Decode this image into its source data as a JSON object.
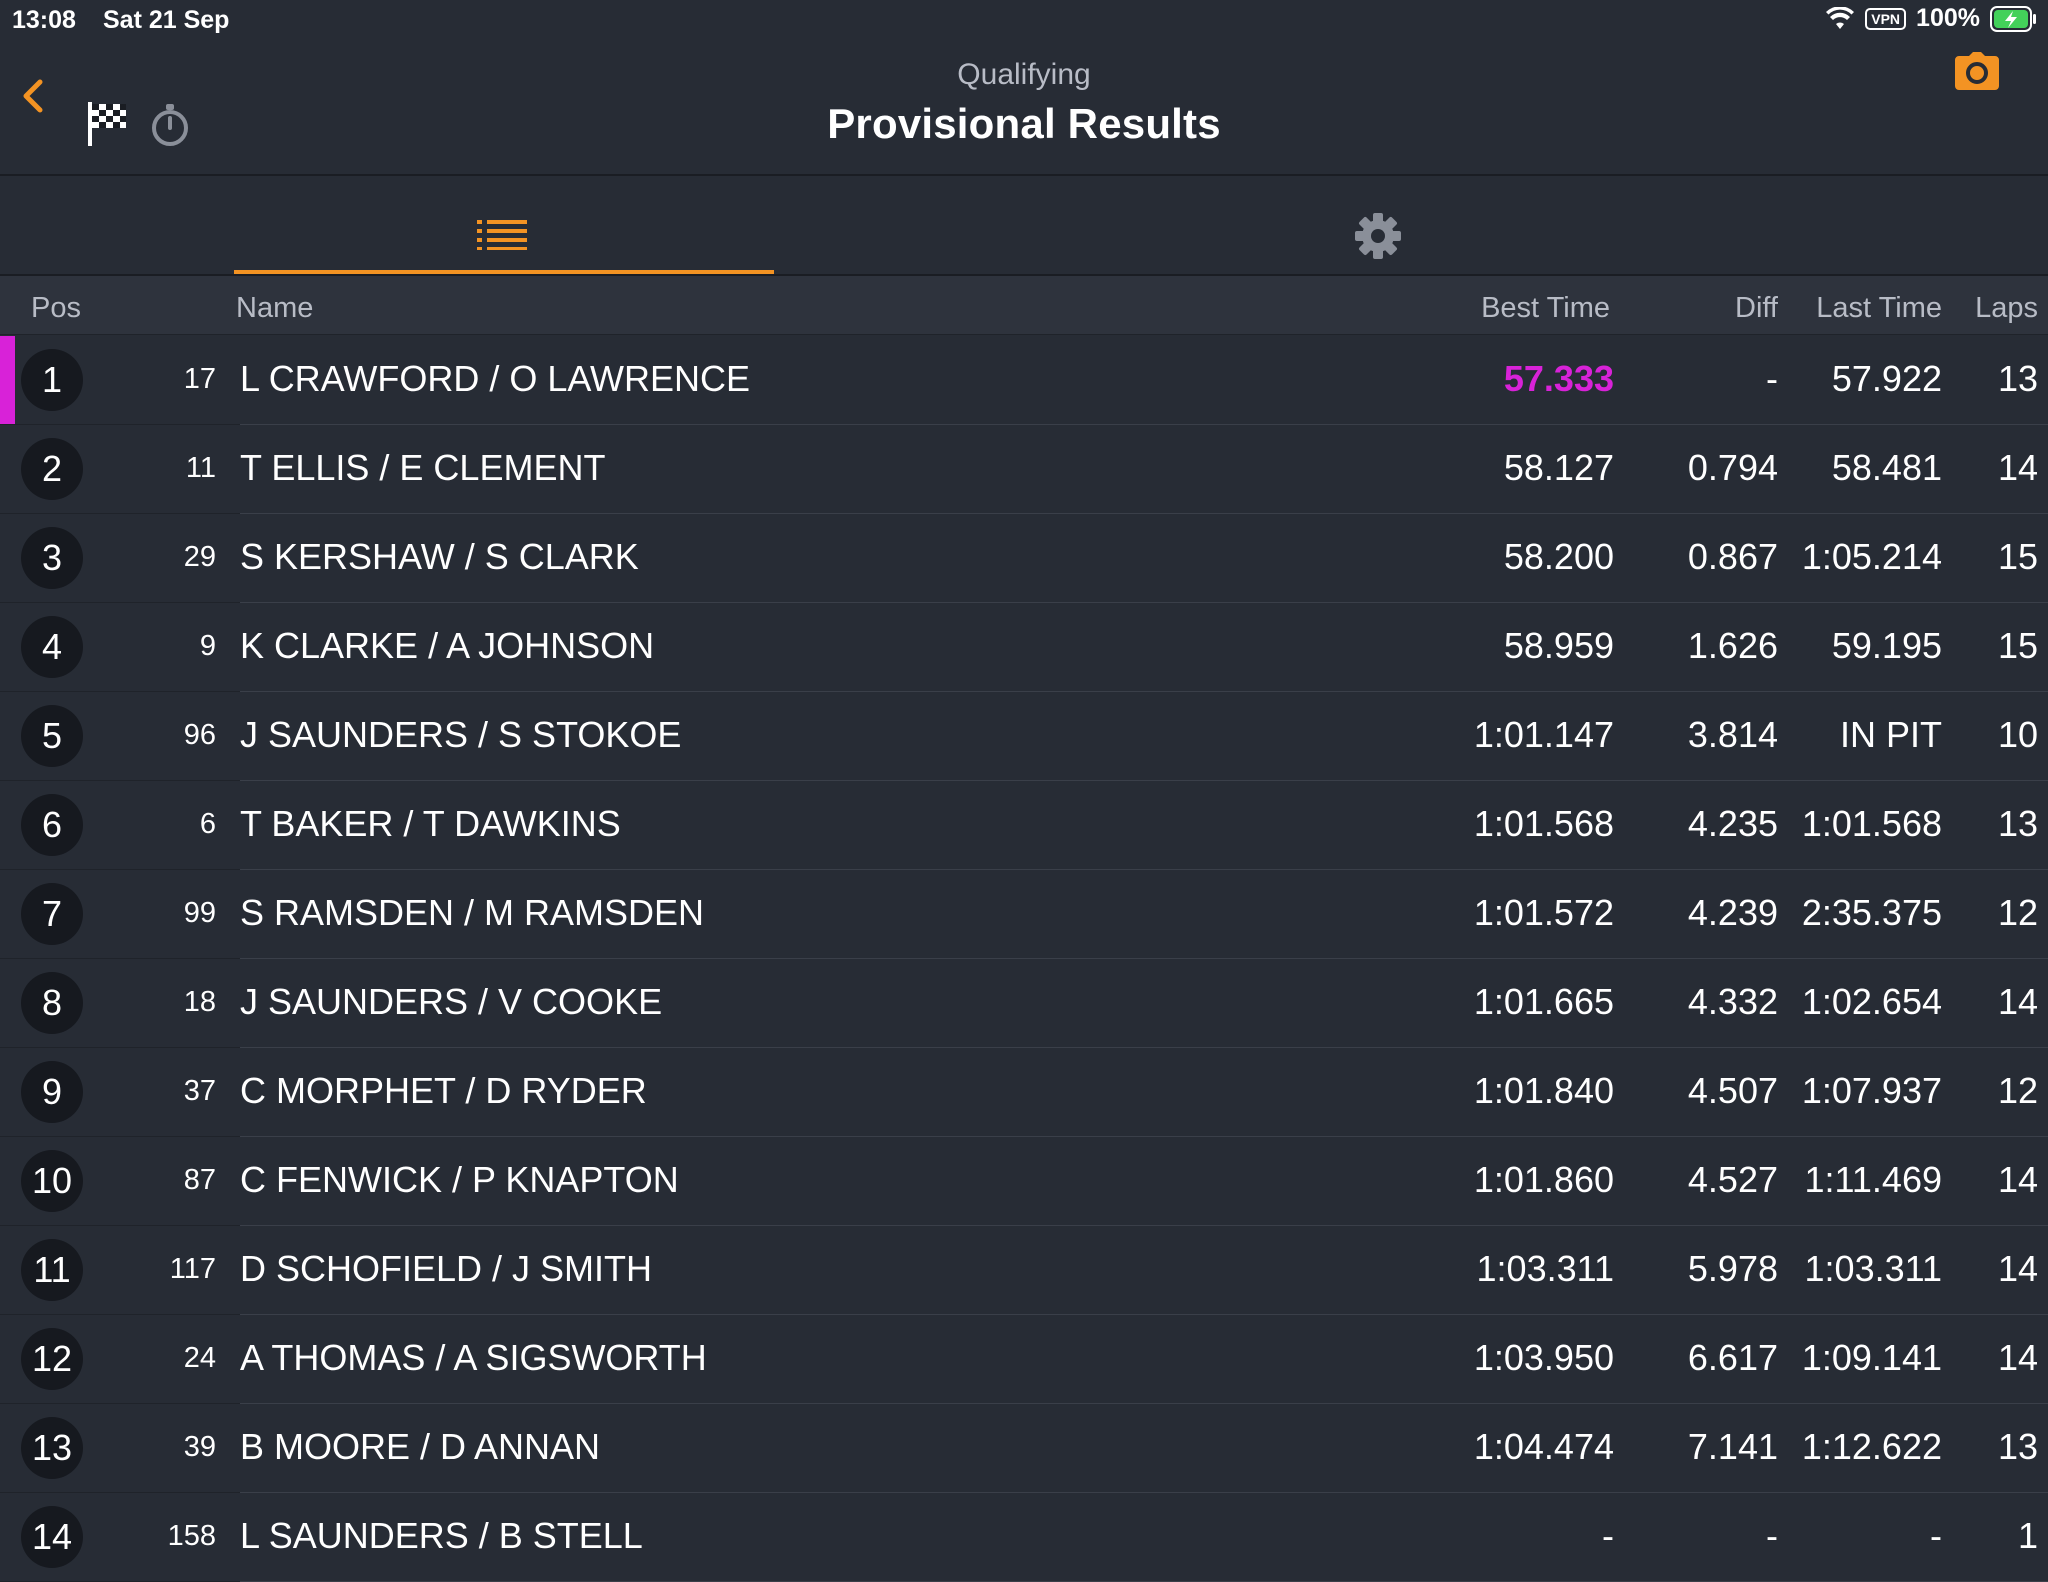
{
  "status_bar": {
    "time": "13:08",
    "date": "Sat 21 Sep",
    "vpn": "VPN",
    "battery": "100%"
  },
  "header": {
    "subtitle": "Qualifying",
    "title": "Provisional Results"
  },
  "columns": {
    "pos": "Pos",
    "name": "Name",
    "best": "Best Time",
    "diff": "Diff",
    "last": "Last Time",
    "laps": "Laps"
  },
  "colors": {
    "accent": "#f39323",
    "fastest": "#d822d8",
    "background": "#272c35"
  },
  "rows": [
    {
      "pos": "1",
      "num": "17",
      "name": "L CRAWFORD / O LAWRENCE",
      "best": "57.333",
      "diff": "-",
      "last": "57.922",
      "laps": "13"
    },
    {
      "pos": "2",
      "num": "11",
      "name": "T ELLIS / E CLEMENT",
      "best": "58.127",
      "diff": "0.794",
      "last": "58.481",
      "laps": "14"
    },
    {
      "pos": "3",
      "num": "29",
      "name": "S KERSHAW / S CLARK",
      "best": "58.200",
      "diff": "0.867",
      "last": "1:05.214",
      "laps": "15"
    },
    {
      "pos": "4",
      "num": "9",
      "name": "K CLARKE / A JOHNSON",
      "best": "58.959",
      "diff": "1.626",
      "last": "59.195",
      "laps": "15"
    },
    {
      "pos": "5",
      "num": "96",
      "name": "J SAUNDERS / S STOKOE",
      "best": "1:01.147",
      "diff": "3.814",
      "last": "IN PIT",
      "laps": "10"
    },
    {
      "pos": "6",
      "num": "6",
      "name": "T BAKER / T DAWKINS",
      "best": "1:01.568",
      "diff": "4.235",
      "last": "1:01.568",
      "laps": "13"
    },
    {
      "pos": "7",
      "num": "99",
      "name": "S RAMSDEN / M RAMSDEN",
      "best": "1:01.572",
      "diff": "4.239",
      "last": "2:35.375",
      "laps": "12"
    },
    {
      "pos": "8",
      "num": "18",
      "name": "J SAUNDERS / V COOKE",
      "best": "1:01.665",
      "diff": "4.332",
      "last": "1:02.654",
      "laps": "14"
    },
    {
      "pos": "9",
      "num": "37",
      "name": "C MORPHET / D RYDER",
      "best": "1:01.840",
      "diff": "4.507",
      "last": "1:07.937",
      "laps": "12"
    },
    {
      "pos": "10",
      "num": "87",
      "name": "C FENWICK / P KNAPTON",
      "best": "1:01.860",
      "diff": "4.527",
      "last": "1:11.469",
      "laps": "14"
    },
    {
      "pos": "11",
      "num": "117",
      "name": "D SCHOFIELD / J SMITH",
      "best": "1:03.311",
      "diff": "5.978",
      "last": "1:03.311",
      "laps": "14"
    },
    {
      "pos": "12",
      "num": "24",
      "name": "A THOMAS / A SIGSWORTH",
      "best": "1:03.950",
      "diff": "6.617",
      "last": "1:09.141",
      "laps": "14"
    },
    {
      "pos": "13",
      "num": "39",
      "name": "B MOORE / D ANNAN",
      "best": "1:04.474",
      "diff": "7.141",
      "last": "1:12.622",
      "laps": "13"
    },
    {
      "pos": "14",
      "num": "158",
      "name": "L SAUNDERS / B STELL",
      "best": "-",
      "diff": "-",
      "last": "-",
      "laps": "1"
    }
  ]
}
